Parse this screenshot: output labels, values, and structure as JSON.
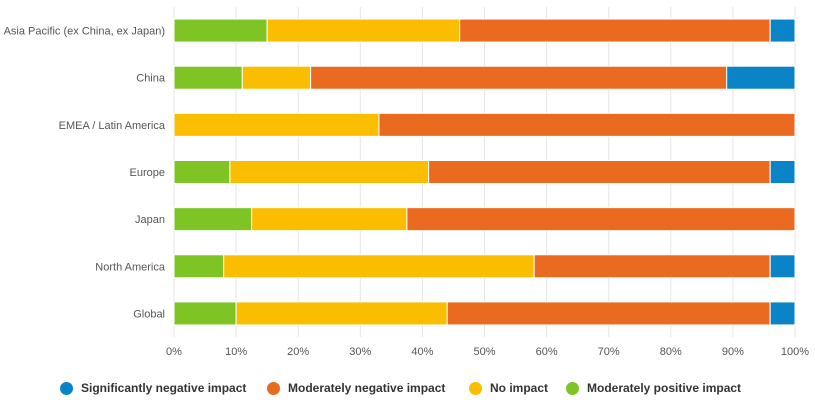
{
  "chart_data": {
    "type": "bar",
    "orientation": "horizontal",
    "stacked": true,
    "categories": [
      "Asia Pacific (ex China, ex Japan)",
      "China",
      "EMEA / Latin America",
      "Europe",
      "Japan",
      "North America",
      "Global"
    ],
    "series": [
      {
        "name": "Moderately positive impact",
        "color": "#7ec424",
        "values": [
          15,
          11,
          0,
          9,
          12.5,
          8,
          10
        ]
      },
      {
        "name": "No impact",
        "color": "#fbbd00",
        "values": [
          31,
          11,
          33,
          32,
          25,
          50,
          34
        ]
      },
      {
        "name": "Moderately negative impact",
        "color": "#ea6a1f",
        "values": [
          50,
          67,
          67,
          55,
          62.5,
          38,
          52
        ]
      },
      {
        "name": "Significantly negative impact",
        "color": "#0a84c6",
        "values": [
          4,
          11,
          0,
          4,
          0,
          4,
          4
        ]
      }
    ],
    "xlim": [
      0,
      100
    ],
    "x_ticks": [
      "0%",
      "10%",
      "20%",
      "30%",
      "40%",
      "50%",
      "60%",
      "70%",
      "80%",
      "90%",
      "100%"
    ],
    "grid": true,
    "legend_position": "bottom",
    "legend_order": [
      "Significantly negative impact",
      "Moderately negative impact",
      "No impact",
      "Moderately positive impact"
    ]
  }
}
